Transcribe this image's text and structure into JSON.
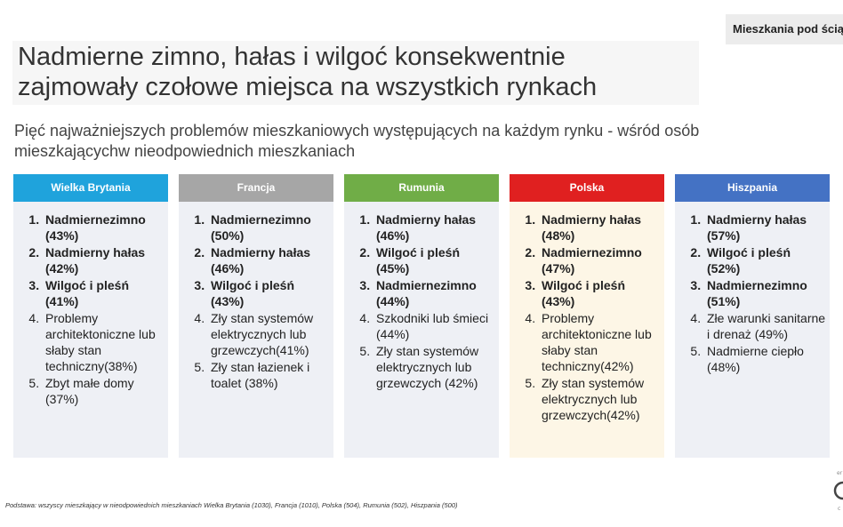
{
  "tag": "Mieszkania pod ścią",
  "title": {
    "line1": "Nadmierne zimno, hałas i wilgoć konsekwentnie",
    "line2": "zajmowały czołowe miejsca na wszystkich rynkach"
  },
  "subtitle": {
    "line1": "Pięć najważniejszych problemów mieszkaniowych występujących na każdym rynku - wśród osób",
    "line2": "mieszkającychw nieodpowiednich mieszkaniach"
  },
  "columns": [
    {
      "name": "Wielka Brytania",
      "header_color": "#1fa3dc",
      "body_color": "#eef0f5",
      "items": [
        {
          "bold": true,
          "text": "Nadmiernezimno (43%)"
        },
        {
          "bold": true,
          "text": "Nadmierny hałas (42%)"
        },
        {
          "bold": true,
          "text": "Wilgoć i pleśń (41%)"
        },
        {
          "bold": false,
          "text": "Problemy architektoniczne lub słaby stan techniczny(38%)"
        },
        {
          "bold": false,
          "text": "Zbyt małe domy (37%)"
        }
      ]
    },
    {
      "name": "Francja",
      "header_color": "#a6a6a6",
      "body_color": "#eef0f5",
      "items": [
        {
          "bold": true,
          "text": "Nadmiernezimno (50%)"
        },
        {
          "bold": true,
          "text": "Nadmierny hałas (46%)"
        },
        {
          "bold": true,
          "text": "Wilgoć i pleśń (43%)"
        },
        {
          "bold": false,
          "text": "Zły stan systemów elektrycznych lub grzewczych(41%)"
        },
        {
          "bold": false,
          "text": "Zły stan łazienek i toalet (38%)"
        }
      ]
    },
    {
      "name": "Rumunia",
      "header_color": "#70ad47",
      "body_color": "#eef0f5",
      "items": [
        {
          "bold": true,
          "text": "Nadmierny hałas (46%)"
        },
        {
          "bold": true,
          "text": "Wilgoć i pleśń (45%)"
        },
        {
          "bold": true,
          "text": "Nadmiernezimno (44%)"
        },
        {
          "bold": false,
          "text": "Szkodniki lub śmieci (44%)"
        },
        {
          "bold": false,
          "text": "Zły stan systemów elektrycznych lub grzewczych (42%)"
        }
      ]
    },
    {
      "name": "Polska",
      "header_color": "#e02020",
      "body_color": "#fdf6e6",
      "items": [
        {
          "bold": true,
          "text": "Nadmierny hałas (48%)"
        },
        {
          "bold": true,
          "text": "Nadmiernezimno (47%)"
        },
        {
          "bold": true,
          "text": "Wilgoć i pleśń (43%)"
        },
        {
          "bold": false,
          "text": "Problemy architektoniczne lub słaby stan techniczny(42%)"
        },
        {
          "bold": false,
          "text": "Zły stan systemów elektrycznych lub grzewczych(42%)"
        }
      ]
    },
    {
      "name": "Hiszpania",
      "header_color": "#4472c4",
      "body_color": "#eef0f5",
      "items": [
        {
          "bold": true,
          "text": "Nadmierny hałas (57%)"
        },
        {
          "bold": true,
          "text": "Wilgoć i pleśń (52%)"
        },
        {
          "bold": true,
          "text": "Nadmiernezimno (51%)"
        },
        {
          "bold": false,
          "text": "Złe warunki sanitarne i drenaż (49%)"
        },
        {
          "bold": false,
          "text": "Nadmierne ciepło (48%)"
        }
      ]
    }
  ],
  "footnote": "Podstawa: wszyscy mieszkający w nieodpowiednich mieszkaniach Wielka Brytania (1030), Francja (1010), Polska (504), Rumunia (502), Hiszpania (500)",
  "logo_icon": "brand-logo-icon"
}
